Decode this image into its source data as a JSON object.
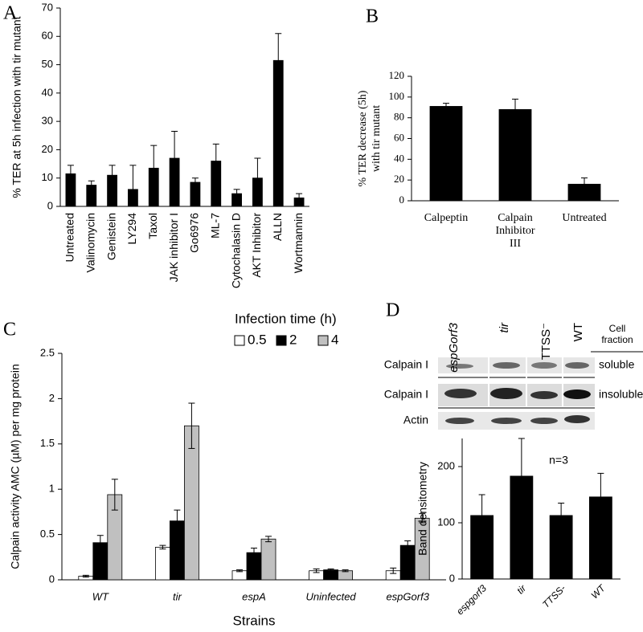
{
  "panel_labels": [
    "A",
    "B",
    "C",
    "D"
  ],
  "chart_data": [
    {
      "type": "bar",
      "ylabel": "% TER at 5h infection with tir mutant",
      "categories": [
        "Untreated",
        "Valinomycin",
        "Genistein",
        "LY294",
        "Taxol",
        "JAK inhibitor I",
        "Go6976",
        "ML-7",
        "Cytochalasin D",
        "AKT Inhibitor",
        "ALLN",
        "Wortmannin"
      ],
      "values": [
        11.5,
        7.5,
        11,
        6,
        13.5,
        17,
        8.5,
        16,
        4.5,
        10,
        51.5,
        3
      ],
      "errors": [
        3,
        1.5,
        3.5,
        8.5,
        8,
        9.5,
        1.5,
        6,
        1.5,
        7,
        9.5,
        1.5
      ],
      "color": "#000000",
      "ylim": [
        0,
        70
      ],
      "yticks": [
        0,
        10,
        20,
        30,
        40,
        50,
        60,
        70
      ]
    },
    {
      "type": "bar",
      "ylabel": [
        "% TER decrease (5h)",
        "with tir mutant"
      ],
      "categories": [
        "Calpeptin",
        "Calpain Inhibitor III",
        "Untreated"
      ],
      "values": [
        91,
        88,
        16
      ],
      "errors": [
        3,
        10,
        6
      ],
      "color": "#000000",
      "ylim": [
        0,
        120
      ],
      "yticks": [
        0,
        20,
        40,
        60,
        80,
        100,
        120
      ]
    },
    {
      "type": "bar",
      "ylabel": "Calpain activity AMC (µM) per mg protein",
      "xlabel": "Strains",
      "legend_title": "Infection time (h)",
      "categories": [
        "WT",
        "tir",
        "espA",
        "Uninfected",
        "espGorf3"
      ],
      "series": [
        {
          "name": "0.5",
          "color": "#ffffff",
          "values": [
            0.04,
            0.36,
            0.1,
            0.1,
            0.1
          ],
          "errors": [
            0.01,
            0.02,
            0.01,
            0.02,
            0.03
          ]
        },
        {
          "name": "2",
          "color": "#000000",
          "values": [
            0.41,
            0.65,
            0.3,
            0.11,
            0.38
          ],
          "errors": [
            0.08,
            0.12,
            0.05,
            0.01,
            0.05
          ]
        },
        {
          "name": "4",
          "color": "#c0c0c0",
          "values": [
            0.94,
            1.7,
            0.45,
            0.1,
            0.68
          ],
          "errors": [
            0.17,
            0.25,
            0.03,
            0.01,
            0.05
          ]
        }
      ],
      "ylim": [
        0,
        2.5
      ],
      "yticks": [
        0,
        0.5,
        1,
        1.5,
        2,
        2.5
      ]
    },
    {
      "type": "bar",
      "ylabel": "Band densitometry",
      "annotation": "n=3",
      "categories": [
        "espgorf3",
        "tir",
        "TTSS-",
        "WT"
      ],
      "values": [
        113,
        183,
        113,
        146
      ],
      "errors": [
        37,
        67,
        22,
        42
      ],
      "color": "#000000",
      "ylim": [
        0,
        250
      ],
      "yticks": [
        0,
        100,
        200
      ]
    }
  ],
  "blot": {
    "lanes": [
      "espGorf3",
      "tir",
      "TTSS⁻",
      "WT"
    ],
    "header": [
      "Cell",
      "fraction"
    ],
    "rows": [
      "Calpain I",
      "Calpain I",
      "Actin"
    ],
    "fractions": [
      "soluble",
      "insoluble"
    ]
  }
}
